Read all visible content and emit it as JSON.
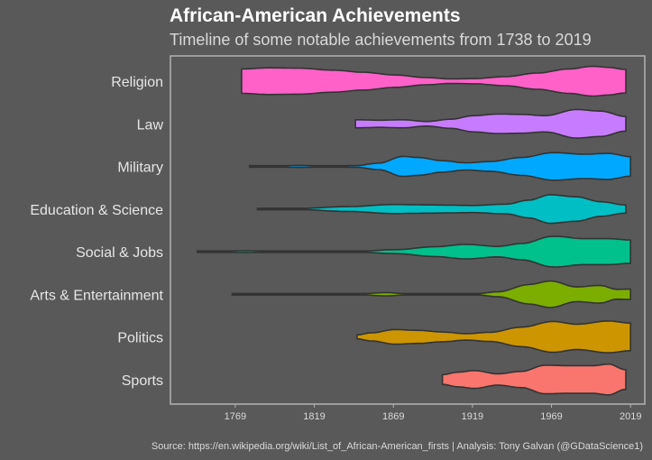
{
  "chart_data": {
    "type": "violin",
    "title": "African-American Achievements",
    "subtitle": "Timeline of some notable achievements from 1738 to 2019",
    "caption": "Source: https://en.wikipedia.org/wiki/List_of_African-American_firsts  |  Analysis: Tony Galvan (@GDataScience1)",
    "xlabel": "",
    "ylabel": "",
    "xlim": [
      1728,
      2028
    ],
    "xticks": [
      1769,
      1819,
      1869,
      1919,
      1969,
      2019
    ],
    "categories": [
      "Religion",
      "Law",
      "Military",
      "Education & Science",
      "Social & Jobs",
      "Arts & Entertainment",
      "Politics",
      "Sports"
    ],
    "colors": [
      "#ff61c9",
      "#c77cff",
      "#00a9ff",
      "#00bfc4",
      "#00c08b",
      "#7cae00",
      "#cd9600",
      "#f8766d"
    ],
    "series": [
      {
        "name": "Religion",
        "range": [
          1773,
          2016
        ],
        "density": [
          [
            1773,
            0.75
          ],
          [
            1790,
            0.82
          ],
          [
            1810,
            0.8
          ],
          [
            1830,
            0.68
          ],
          [
            1850,
            0.55
          ],
          [
            1870,
            0.38
          ],
          [
            1890,
            0.22
          ],
          [
            1905,
            0.14
          ],
          [
            1920,
            0.16
          ],
          [
            1940,
            0.28
          ],
          [
            1960,
            0.5
          ],
          [
            1980,
            0.75
          ],
          [
            1995,
            0.92
          ],
          [
            2005,
            0.85
          ],
          [
            2016,
            0.72
          ]
        ]
      },
      {
        "name": "Law",
        "range": [
          1845,
          2016
        ],
        "density": [
          [
            1845,
            0.25
          ],
          [
            1860,
            0.22
          ],
          [
            1875,
            0.25
          ],
          [
            1890,
            0.14
          ],
          [
            1905,
            0.28
          ],
          [
            1920,
            0.5
          ],
          [
            1935,
            0.6
          ],
          [
            1950,
            0.58
          ],
          [
            1965,
            0.5
          ],
          [
            1985,
            0.88
          ],
          [
            2000,
            0.78
          ],
          [
            2016,
            0.45
          ]
        ]
      },
      {
        "name": "Military",
        "range": [
          1778,
          2019
        ],
        "density": [
          [
            1778,
            0.05
          ],
          [
            1790,
            0.02
          ],
          [
            1810,
            0.06
          ],
          [
            1825,
            0.02
          ],
          [
            1845,
            0.05
          ],
          [
            1860,
            0.2
          ],
          [
            1875,
            0.62
          ],
          [
            1885,
            0.55
          ],
          [
            1900,
            0.35
          ],
          [
            1915,
            0.22
          ],
          [
            1930,
            0.3
          ],
          [
            1950,
            0.55
          ],
          [
            1970,
            0.85
          ],
          [
            1990,
            0.75
          ],
          [
            2005,
            0.8
          ],
          [
            2019,
            0.6
          ]
        ]
      },
      {
        "name": "Education & Science",
        "range": [
          1783,
          2016
        ],
        "density": [
          [
            1783,
            0.03
          ],
          [
            1810,
            0.04
          ],
          [
            1840,
            0.15
          ],
          [
            1870,
            0.28
          ],
          [
            1895,
            0.25
          ],
          [
            1920,
            0.22
          ],
          [
            1940,
            0.3
          ],
          [
            1955,
            0.55
          ],
          [
            1968,
            0.88
          ],
          [
            1985,
            0.75
          ],
          [
            2000,
            0.45
          ],
          [
            2016,
            0.25
          ]
        ]
      },
      {
        "name": "Social & Jobs",
        "range": [
          1745,
          2019
        ],
        "density": [
          [
            1745,
            0.03
          ],
          [
            1760,
            0.02
          ],
          [
            1775,
            0.06
          ],
          [
            1795,
            0.02
          ],
          [
            1820,
            0.03
          ],
          [
            1845,
            0.02
          ],
          [
            1870,
            0.12
          ],
          [
            1895,
            0.3
          ],
          [
            1915,
            0.45
          ],
          [
            1935,
            0.32
          ],
          [
            1950,
            0.5
          ],
          [
            1970,
            0.95
          ],
          [
            1990,
            0.8
          ],
          [
            2005,
            0.8
          ],
          [
            2019,
            0.72
          ]
        ]
      },
      {
        "name": "Arts & Entertainment",
        "range": [
          1767,
          2019
        ],
        "density": [
          [
            1767,
            0.02
          ],
          [
            1800,
            0.02
          ],
          [
            1820,
            0.05
          ],
          [
            1845,
            0.02
          ],
          [
            1865,
            0.1
          ],
          [
            1880,
            0.02
          ],
          [
            1900,
            0.04
          ],
          [
            1920,
            0.02
          ],
          [
            1935,
            0.15
          ],
          [
            1955,
            0.6
          ],
          [
            1968,
            0.82
          ],
          [
            1985,
            0.45
          ],
          [
            2000,
            0.55
          ],
          [
            2010,
            0.3
          ],
          [
            2019,
            0.32
          ]
        ]
      },
      {
        "name": "Politics",
        "range": [
          1846,
          2019
        ],
        "density": [
          [
            1846,
            0.12
          ],
          [
            1855,
            0.25
          ],
          [
            1870,
            0.45
          ],
          [
            1885,
            0.4
          ],
          [
            1900,
            0.3
          ],
          [
            1915,
            0.2
          ],
          [
            1930,
            0.28
          ],
          [
            1950,
            0.6
          ],
          [
            1970,
            0.95
          ],
          [
            1985,
            0.78
          ],
          [
            2005,
            0.98
          ],
          [
            2019,
            0.85
          ]
        ]
      },
      {
        "name": "Sports",
        "range": [
          1900,
          2016
        ],
        "density": [
          [
            1900,
            0.3
          ],
          [
            1910,
            0.45
          ],
          [
            1920,
            0.55
          ],
          [
            1935,
            0.35
          ],
          [
            1950,
            0.5
          ],
          [
            1965,
            0.88
          ],
          [
            1980,
            0.85
          ],
          [
            1995,
            0.85
          ],
          [
            2005,
            0.95
          ],
          [
            2016,
            0.6
          ]
        ]
      }
    ]
  }
}
